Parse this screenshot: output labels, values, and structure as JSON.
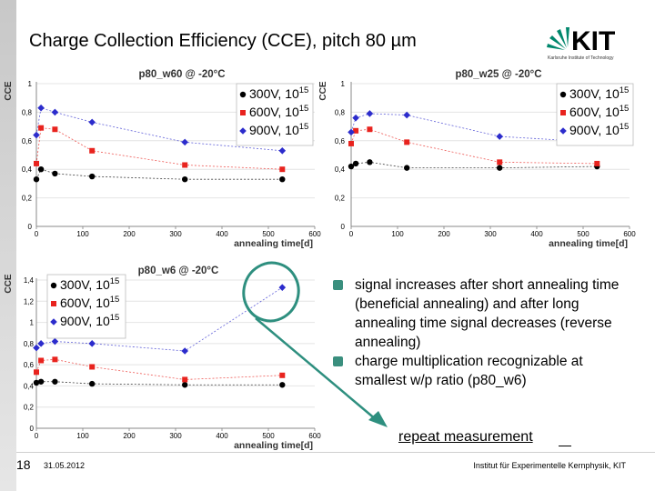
{
  "slide": {
    "title": "Charge Collection Efficiency (CCE), pitch 80 µm",
    "logo": {
      "text": "KIT",
      "tagline": "Karlsruhe Institute of Technology"
    },
    "bullets": [
      "signal increases after short annealing time (beneficial annealing) and after long annealing time signal decreases (reverse annealing)",
      "charge multiplication recognizable at smallest w/p ratio (p80_w6)"
    ],
    "annotation": "repeat measurement",
    "page_number": "18",
    "date": "31.05.2012",
    "institute": "Institut für Experimentelle Kernphysik, KIT"
  },
  "colors": {
    "accent": "#3a8f7e",
    "s300": "#000000",
    "s600": "#e8231e",
    "s900": "#2c2ccc"
  },
  "chart_data": [
    {
      "type": "line",
      "title": "p80_w60 @ -20°C",
      "xlabel": "annealing time[d]",
      "ylabel": "CCE",
      "xlim": [
        0,
        600
      ],
      "ylim": [
        0,
        1
      ],
      "xticks": [
        "0",
        "100",
        "200",
        "300",
        "400",
        "500",
        "600"
      ],
      "yticks": [
        "0",
        "0,2",
        "0,4",
        "0,6",
        "0,8",
        "1"
      ],
      "legend": "top-right",
      "series": [
        {
          "name": "300V, 10",
          "sup": "15",
          "x": [
            0,
            10,
            40,
            120,
            320,
            530
          ],
          "values": [
            0.33,
            0.4,
            0.37,
            0.35,
            0.33,
            0.33
          ]
        },
        {
          "name": "600V, 10",
          "sup": "15",
          "x": [
            0,
            10,
            40,
            120,
            320,
            530
          ],
          "values": [
            0.44,
            0.69,
            0.68,
            0.53,
            0.43,
            0.4
          ]
        },
        {
          "name": "900V, 10",
          "sup": "15",
          "x": [
            0,
            10,
            40,
            120,
            320,
            530
          ],
          "values": [
            0.64,
            0.83,
            0.8,
            0.73,
            0.59,
            0.53
          ]
        }
      ]
    },
    {
      "type": "line",
      "title": "p80_w25 @ -20°C",
      "xlabel": "annealing time[d]",
      "ylabel": "CCE",
      "xlim": [
        0,
        600
      ],
      "ylim": [
        0,
        1
      ],
      "xticks": [
        "0",
        "100",
        "200",
        "300",
        "400",
        "500",
        "600"
      ],
      "yticks": [
        "0",
        "0,2",
        "0,4",
        "0,6",
        "0,8",
        "1"
      ],
      "legend": "top-right",
      "series": [
        {
          "name": "300V, 10",
          "sup": "15",
          "x": [
            0,
            10,
            40,
            120,
            320,
            530
          ],
          "values": [
            0.42,
            0.44,
            0.45,
            0.41,
            0.41,
            0.42
          ]
        },
        {
          "name": "600V, 10",
          "sup": "15",
          "x": [
            0,
            10,
            40,
            120,
            320,
            530
          ],
          "values": [
            0.58,
            0.67,
            0.68,
            0.59,
            0.45,
            0.44
          ]
        },
        {
          "name": "900V, 10",
          "sup": "15",
          "x": [
            0,
            10,
            40,
            120,
            320,
            530
          ],
          "values": [
            0.66,
            0.76,
            0.79,
            0.78,
            0.63,
            0.59
          ]
        }
      ]
    },
    {
      "type": "line",
      "title": "p80_w6 @ -20°C",
      "xlabel": "annealing time[d]",
      "ylabel": "CCE",
      "xlim": [
        0,
        600
      ],
      "ylim": [
        0,
        1.4
      ],
      "xticks": [
        "0",
        "100",
        "200",
        "300",
        "400",
        "500",
        "600"
      ],
      "yticks": [
        "0",
        "0,2",
        "0,4",
        "0,6",
        "0,8",
        "1",
        "1,2",
        "1,4"
      ],
      "legend": "top-left",
      "series": [
        {
          "name": "300V, 10",
          "sup": "15",
          "x": [
            0,
            10,
            40,
            120,
            320,
            530
          ],
          "values": [
            0.43,
            0.44,
            0.44,
            0.42,
            0.41,
            0.41
          ]
        },
        {
          "name": "600V, 10",
          "sup": "15",
          "x": [
            0,
            10,
            40,
            120,
            320,
            530
          ],
          "values": [
            0.53,
            0.64,
            0.65,
            0.58,
            0.46,
            0.5
          ]
        },
        {
          "name": "900V, 10",
          "sup": "15",
          "x": [
            0,
            10,
            40,
            120,
            320,
            530
          ],
          "values": [
            0.76,
            0.8,
            0.82,
            0.8,
            0.73,
            1.33
          ]
        }
      ]
    }
  ]
}
